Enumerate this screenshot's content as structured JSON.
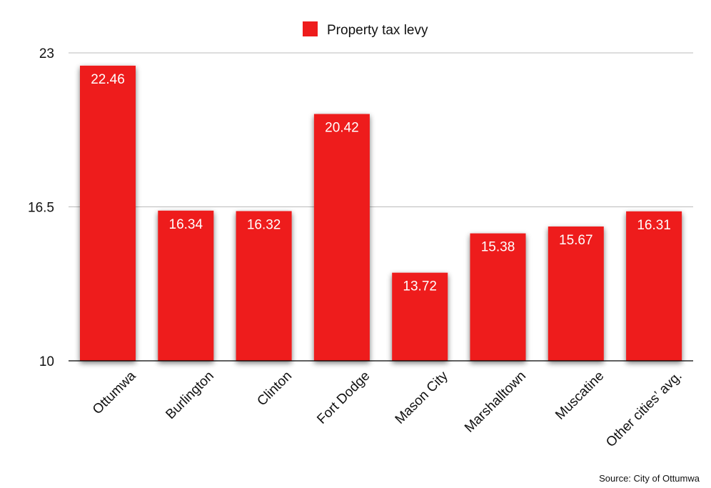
{
  "chart_data": {
    "type": "bar",
    "categories": [
      "Ottumwa",
      "Burlington",
      "Clinton",
      "Fort Dodge",
      "Mason City",
      "Marshalltown",
      "Muscatine",
      "Other cities’ avg."
    ],
    "series": [
      {
        "name": "Property tax levy",
        "values": [
          22.46,
          16.34,
          16.32,
          20.42,
          13.72,
          15.38,
          15.67,
          16.31
        ]
      }
    ],
    "data_labels": [
      "22.46",
      "16.34",
      "16.32",
      "20.42",
      "13.72",
      "15.38",
      "15.67",
      "16.31"
    ],
    "ylim": [
      10,
      23
    ],
    "yticks": [
      10,
      16.5,
      23
    ],
    "ytick_labels": [
      "10",
      "16.5",
      "23"
    ],
    "grid": true,
    "legend_position": "top-center",
    "source": "Source: City of Ottumwa"
  },
  "colors": {
    "bar": "#ee1c1c",
    "grid": "#bbbbbb",
    "axis": "#000000",
    "shadow": "#000000"
  }
}
